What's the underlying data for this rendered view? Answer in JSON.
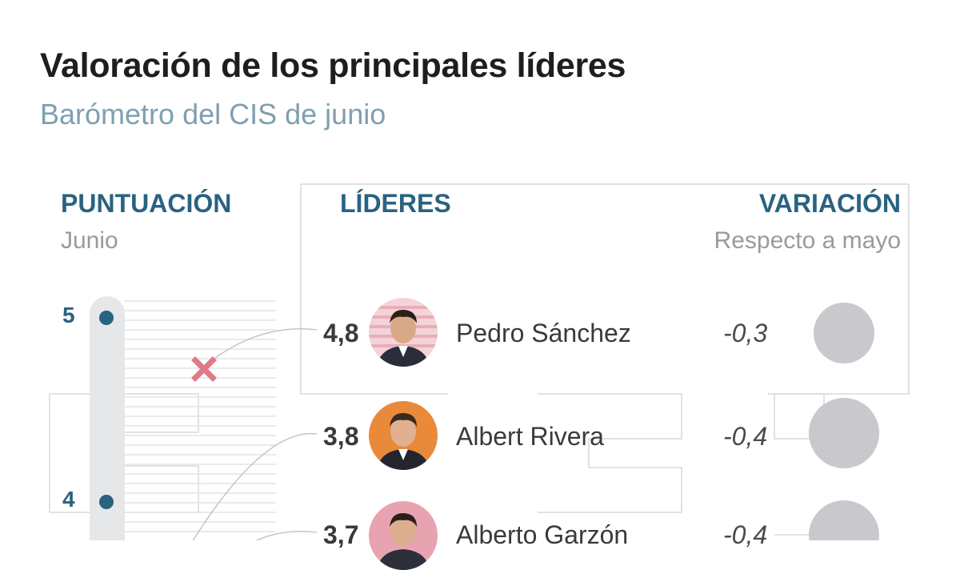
{
  "title": "Valoración de los principales líderes",
  "subtitle": "Barómetro del CIS de junio",
  "columns": {
    "score_header": "PUNTUACIÓN",
    "score_sub": "Junio",
    "leaders_header": "LÍDERES",
    "variation_header": "VARIACIÓN",
    "variation_sub": "Respecto a mayo"
  },
  "chart_data": {
    "type": "scatter",
    "y_ticks": [
      "5",
      "4"
    ],
    "ylim": [
      3.6,
      5
    ],
    "leaders": [
      {
        "name": "Pedro Sánchez",
        "score": 4.8,
        "score_label": "4,8",
        "variation": -0.3,
        "variation_label": "-0,3",
        "marker_color": "#e07a86"
      },
      {
        "name": "Albert Rivera",
        "score": 3.8,
        "score_label": "3,8",
        "variation": -0.4,
        "variation_label": "-0,4",
        "marker_color": "#f2c75c"
      },
      {
        "name": "Alberto Garzón",
        "score": 3.7,
        "score_label": "3,7",
        "variation": -0.4,
        "variation_label": "-0,4",
        "marker_color": "#c8a0d0"
      }
    ]
  },
  "colors": {
    "header": "#2a6281",
    "subtitle": "#7f9fb0",
    "variation_circle": "#c9c9cd"
  }
}
